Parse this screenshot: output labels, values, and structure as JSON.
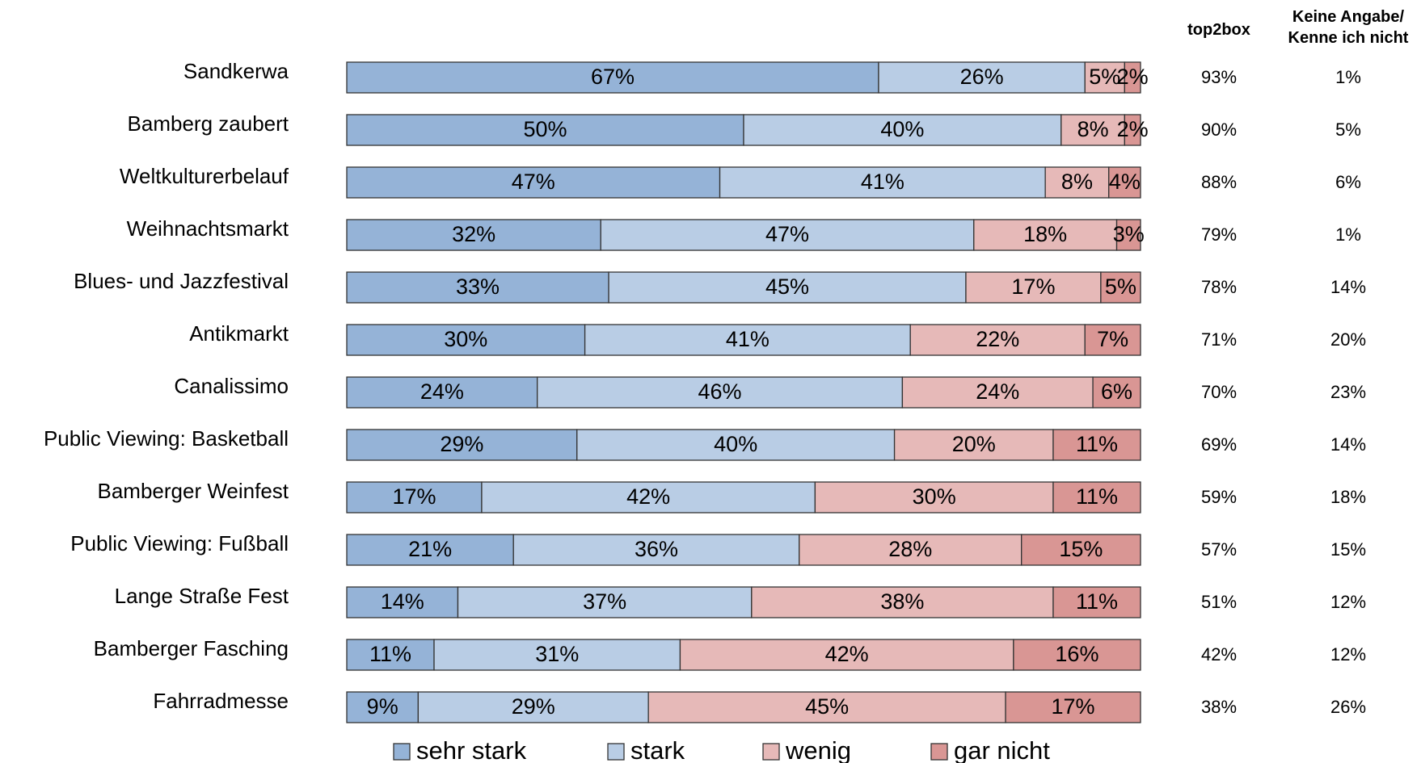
{
  "chart_data": {
    "type": "stacked-barh",
    "categories": [
      "Sandkerwa",
      "Bamberg zaubert",
      "Weltkulturerbelauf",
      "Weihnachtsmarkt",
      "Blues- und Jazzfestival",
      "Antikmarkt",
      "Canalissimo",
      "Public Viewing: Basketball",
      "Bamberger Weinfest",
      "Public Viewing: Fußball",
      "Lange Straße  Fest",
      "Bamberger Fasching",
      "Fahrradmesse"
    ],
    "xlim": [
      0,
      100
    ],
    "series": [
      {
        "name": "sehr stark",
        "color": "#95b3d7",
        "values": [
          67,
          50,
          47,
          32,
          33,
          30,
          24,
          29,
          17,
          21,
          14,
          11,
          9
        ],
        "value_labels": [
          "67%",
          "50%",
          "47%",
          "32%",
          "33%",
          "30%",
          "24%",
          "29%",
          "17%",
          "21%",
          "14%",
          "11%",
          "9%"
        ]
      },
      {
        "name": "stark",
        "color": "#b9cde5",
        "values": [
          26,
          40,
          41,
          47,
          45,
          41,
          46,
          40,
          42,
          36,
          37,
          31,
          29
        ],
        "value_labels": [
          "26%",
          "40%",
          "41%",
          "47%",
          "45%",
          "41%",
          "46%",
          "40%",
          "42%",
          "36%",
          "37%",
          "31%",
          "29%"
        ]
      },
      {
        "name": "wenig",
        "color": "#e6b9b8",
        "values": [
          5,
          8,
          8,
          18,
          17,
          22,
          24,
          20,
          30,
          28,
          38,
          42,
          45
        ],
        "value_labels": [
          "5%",
          "8%",
          "8%",
          "18%",
          "17%",
          "22%",
          "24%",
          "20%",
          "30%",
          "28%",
          "38%",
          "42%",
          "45%"
        ]
      },
      {
        "name": "gar nicht",
        "color": "#d99694",
        "values": [
          2,
          2,
          4,
          3,
          5,
          7,
          6,
          11,
          11,
          15,
          11,
          16,
          17
        ],
        "value_labels": [
          "2%",
          "2%",
          "4%",
          "3%",
          "5%",
          "7%",
          "6%",
          "11%",
          "11%",
          "15%",
          "11%",
          "16%",
          "17%"
        ]
      }
    ],
    "columns": [
      {
        "name": "top2box",
        "values": [
          93,
          90,
          88,
          79,
          78,
          71,
          70,
          69,
          59,
          57,
          51,
          42,
          38
        ],
        "value_labels": [
          "93%",
          "90%",
          "88%",
          "79%",
          "78%",
          "71%",
          "70%",
          "69%",
          "59%",
          "57%",
          "51%",
          "42%",
          "38%"
        ]
      },
      {
        "name": "Keine Angabe/\nKenne ich nicht",
        "values": [
          1,
          5,
          6,
          1,
          14,
          20,
          23,
          14,
          18,
          15,
          12,
          12,
          26
        ],
        "value_labels": [
          "1%",
          "5%",
          "6%",
          "1%",
          "14%",
          "20%",
          "23%",
          "14%",
          "18%",
          "15%",
          "12%",
          "12%",
          "26%"
        ]
      }
    ],
    "legend": "bottom"
  }
}
